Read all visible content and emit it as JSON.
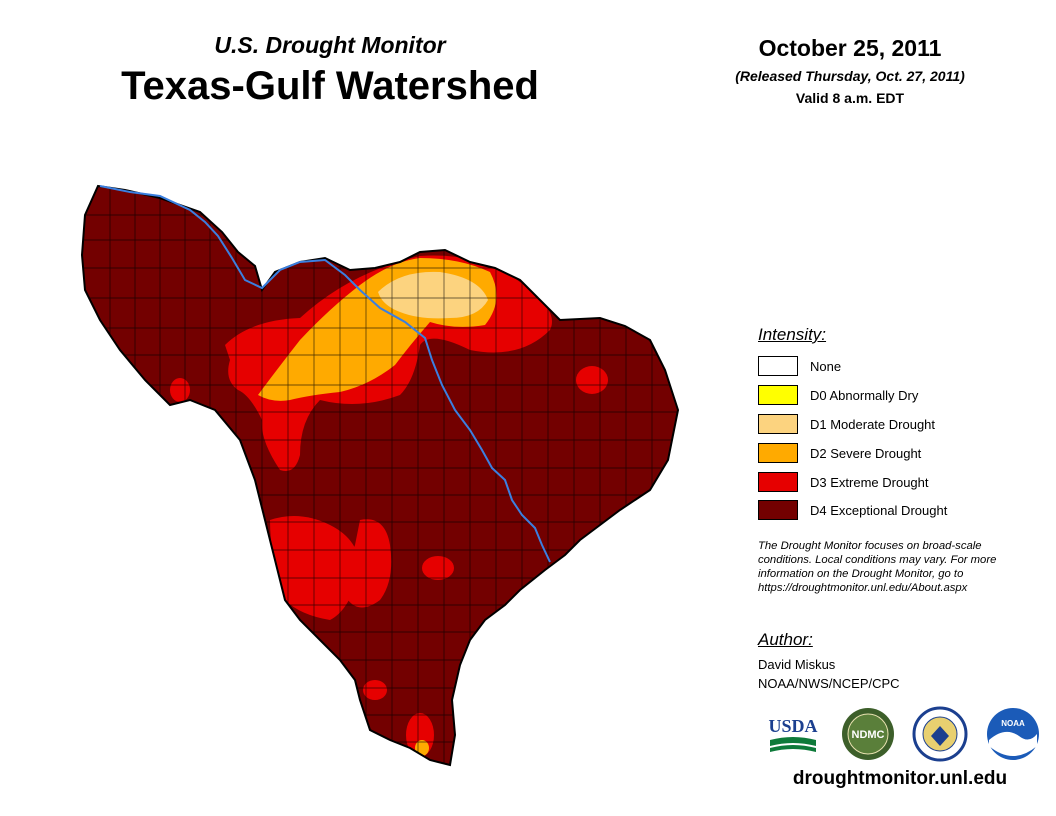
{
  "header": {
    "program": "U.S. Drought Monitor",
    "region": "Texas-Gulf Watershed",
    "date": "October 25, 2011",
    "released": "(Released Thursday, Oct. 27, 2011)",
    "valid": "Valid 8 a.m. EDT"
  },
  "legend": {
    "title": "Intensity:",
    "items": [
      {
        "label": "None",
        "color": "#ffffff"
      },
      {
        "label": "D0 Abnormally Dry",
        "color": "#ffff00"
      },
      {
        "label": "D1 Moderate Drought",
        "color": "#fcd37f"
      },
      {
        "label": "D2 Severe Drought",
        "color": "#ffaa00"
      },
      {
        "label": "D3 Extreme Drought",
        "color": "#e60000"
      },
      {
        "label": "D4 Exceptional Drought",
        "color": "#730000"
      }
    ]
  },
  "note": {
    "line1": "The Drought Monitor focuses on broad-scale",
    "line2": "conditions. Local conditions may vary. For more",
    "line3": "information on the Drought Monitor, go to",
    "line4": "https://droughtmonitor.unl.edu/About.aspx"
  },
  "author": {
    "title": "Author:",
    "name": "David Miskus",
    "org": "NOAA/NWS/NCEP/CPC"
  },
  "logos": {
    "usda": "USDA",
    "ndmc": "NDMC",
    "noaa": "NOAA"
  },
  "footer": {
    "url": "droughtmonitor.unl.edu"
  },
  "colors": {
    "river": "#3b7fe0",
    "boundary": "#000000"
  }
}
